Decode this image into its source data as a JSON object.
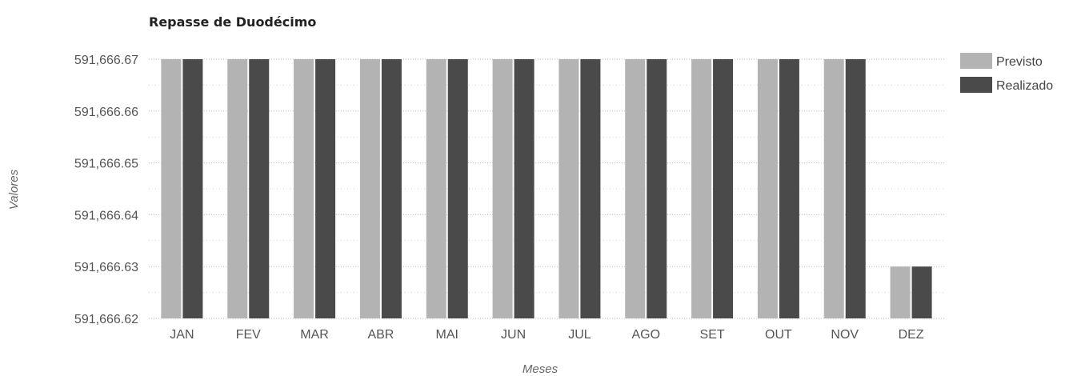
{
  "chart_data": {
    "type": "bar",
    "title": "Repasse de Duodécimo",
    "xlabel": "Meses",
    "ylabel": "Valores",
    "categories": [
      "JAN",
      "FEV",
      "MAR",
      "ABR",
      "MAI",
      "JUN",
      "JUL",
      "AGO",
      "SET",
      "OUT",
      "NOV",
      "DEZ"
    ],
    "series": [
      {
        "name": "Previsto",
        "color": "#b3b3b3",
        "values": [
          591666.67,
          591666.67,
          591666.67,
          591666.67,
          591666.67,
          591666.67,
          591666.67,
          591666.67,
          591666.67,
          591666.67,
          591666.67,
          591666.63
        ]
      },
      {
        "name": "Realizado",
        "color": "#4a4a4a",
        "values": [
          591666.67,
          591666.67,
          591666.67,
          591666.67,
          591666.67,
          591666.67,
          591666.67,
          591666.67,
          591666.67,
          591666.67,
          591666.67,
          591666.63
        ]
      }
    ],
    "ylim": [
      591666.62,
      591666.67
    ],
    "yticks": [
      "591,666.67",
      "591,666.66",
      "591,666.65",
      "591,666.64",
      "591,666.63",
      "591,666.62"
    ],
    "grid": true,
    "legend_position": "top-right"
  }
}
